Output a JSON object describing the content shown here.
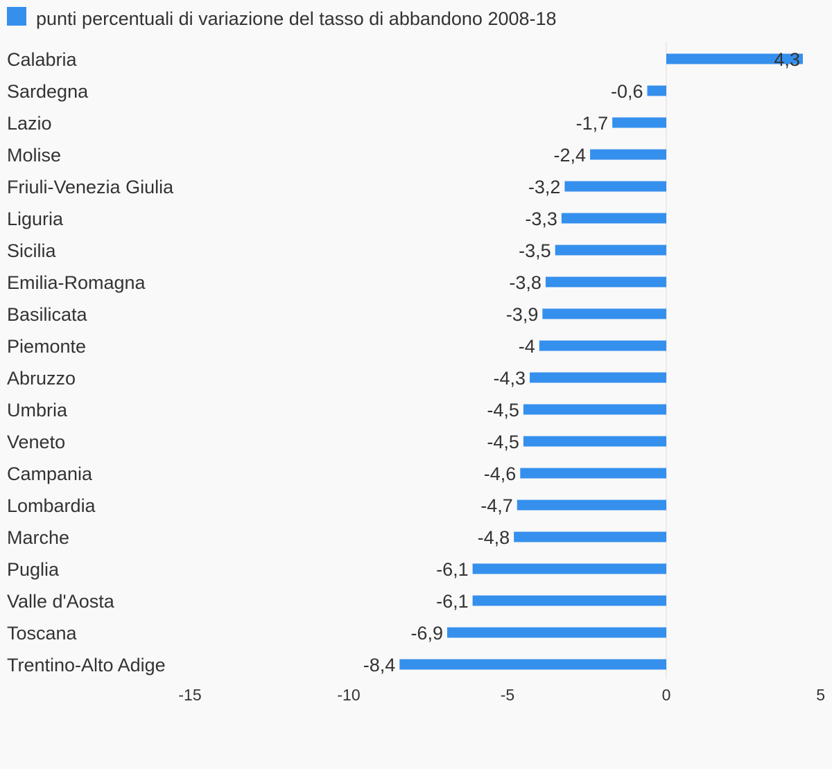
{
  "legend": {
    "label": "punti percentuali di variazione del tasso di abbandono 2008-18",
    "color": "#358fed"
  },
  "chart_data": {
    "type": "bar",
    "orientation": "horizontal",
    "categories": [
      "Calabria",
      "Sardegna",
      "Lazio",
      "Molise",
      "Friuli-Venezia Giulia",
      "Liguria",
      "Sicilia",
      "Emilia-Romagna",
      "Basilicata",
      "Piemonte",
      "Abruzzo",
      "Umbria",
      "Veneto",
      "Campania",
      "Lombardia",
      "Marche",
      "Puglia",
      "Valle d'Aosta",
      "Toscana",
      "Trentino-Alto Adige"
    ],
    "series": [
      {
        "name": "punti percentuali di variazione del tasso di abbandono 2008-18",
        "values": [
          4.3,
          -0.6,
          -1.7,
          -2.4,
          -3.2,
          -3.3,
          -3.5,
          -3.8,
          -3.9,
          -4,
          -4.3,
          -4.5,
          -4.5,
          -4.6,
          -4.7,
          -4.8,
          -6.1,
          -6.1,
          -6.9,
          -8.4
        ],
        "labels": [
          "4,3",
          "-0,6",
          "-1,7",
          "-2,4",
          "-3,2",
          "-3,3",
          "-3,5",
          "-3,8",
          "-3,9",
          "-4",
          "-4,3",
          "-4,5",
          "-4,5",
          "-4,6",
          "-4,7",
          "-4,8",
          "-6,1",
          "-6,1",
          "-6,9",
          "-8,4"
        ]
      }
    ],
    "xlim": [
      -15,
      5
    ],
    "xticks": [
      -15,
      -10,
      -5,
      0,
      5
    ],
    "xtick_labels": [
      "-15",
      "-10",
      "-5",
      "0",
      "5"
    ],
    "bar_color": "#358fed",
    "grid": false,
    "legend_position": "top-left"
  }
}
